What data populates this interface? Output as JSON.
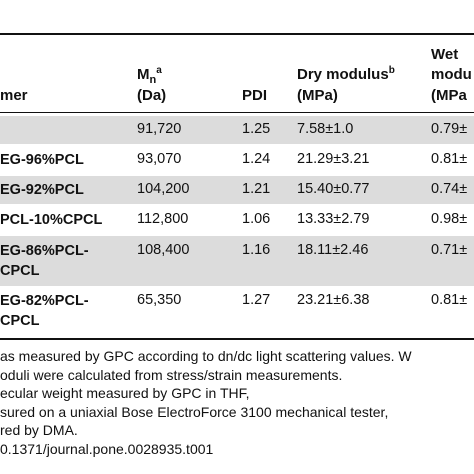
{
  "table": {
    "headers": {
      "polymer": "mer",
      "mn_line1": "M",
      "mn_sub": "n",
      "mn_sup": "a",
      "mn_unit": "(Da)",
      "pdi": "PDI",
      "dry_line1": "Dry modulus",
      "dry_sup": "b",
      "dry_unit": "(MPa)",
      "wet_line1": "Wet",
      "wet_line2": "modu",
      "wet_unit": "(MPa"
    },
    "rows": [
      {
        "name_line1": "",
        "name_line2": "",
        "mn": "91,720",
        "pdi": "1.25",
        "dry": "7.58±1.0",
        "wet": "0.79±"
      },
      {
        "name_line1": "EG-96%PCL",
        "name_line2": "",
        "mn": "93,070",
        "pdi": "1.24",
        "dry": "21.29±3.21",
        "wet": "0.81±"
      },
      {
        "name_line1": "EG-92%PCL",
        "name_line2": "",
        "mn": "104,200",
        "pdi": "1.21",
        "dry": "15.40±0.77",
        "wet": "0.74±"
      },
      {
        "name_line1": "PCL-10%CPCL",
        "name_line2": "",
        "mn": "112,800",
        "pdi": "1.06",
        "dry": "13.33±2.79",
        "wet": "0.98±"
      },
      {
        "name_line1": "EG-86%PCL-",
        "name_line2": "CPCL",
        "mn": "108,400",
        "pdi": "1.16",
        "dry": "18.11±2.46",
        "wet": "0.71±"
      },
      {
        "name_line1": "EG-82%PCL-",
        "name_line2": "CPCL",
        "mn": "65,350",
        "pdi": "1.27",
        "dry": "23.21±6.38",
        "wet": "0.81±"
      }
    ]
  },
  "footnotes": [
    "as measured by GPC according to dn/dc light scattering values. W",
    "oduli were calculated from stress/strain measurements.",
    "ecular weight measured by GPC in THF,",
    "sured on a uniaxial Bose ElectroForce 3100 mechanical tester,",
    "red by DMA.",
    "0.1371/journal.pone.0028935.t001"
  ]
}
